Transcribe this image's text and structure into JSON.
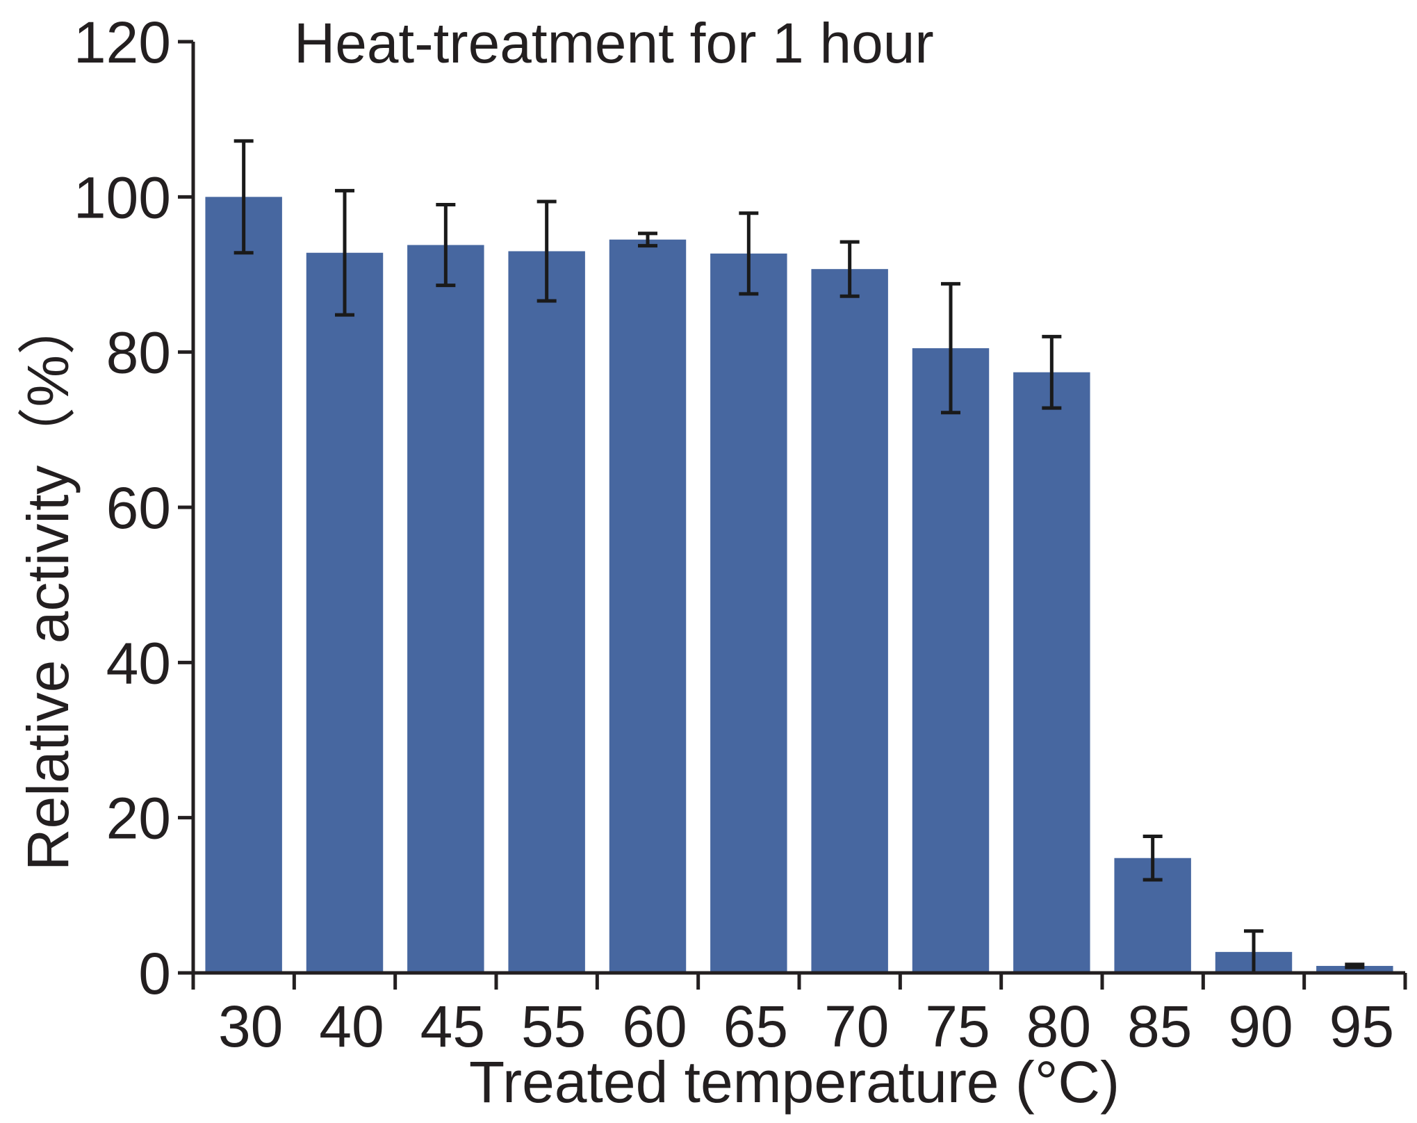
{
  "chart_data": {
    "type": "bar",
    "title": "Heat-treatment for 1 hour",
    "xlabel": "Treated  temperature (°C)",
    "ylabel": "Relative activity（%）",
    "categories": [
      "30",
      "40",
      "45",
      "55",
      "60",
      "65",
      "70",
      "75",
      "80",
      "85",
      "90",
      "95"
    ],
    "values": [
      100,
      92.8,
      93.8,
      93,
      94.5,
      92.7,
      90.7,
      80.5,
      77.4,
      14.8,
      2.7,
      0.9
    ],
    "errors": [
      7.2,
      8,
      5.2,
      6.4,
      0.8,
      5.2,
      3.5,
      8.3,
      4.6,
      2.8,
      2.7,
      0.2
    ],
    "ylim": [
      0,
      120
    ],
    "yticks": [
      "0",
      "20",
      "40",
      "60",
      "80",
      "100",
      "120"
    ],
    "grid": false,
    "bar_color": "#4767a0",
    "error_color": "#1a1a1a",
    "axis_color": "#231f20"
  }
}
